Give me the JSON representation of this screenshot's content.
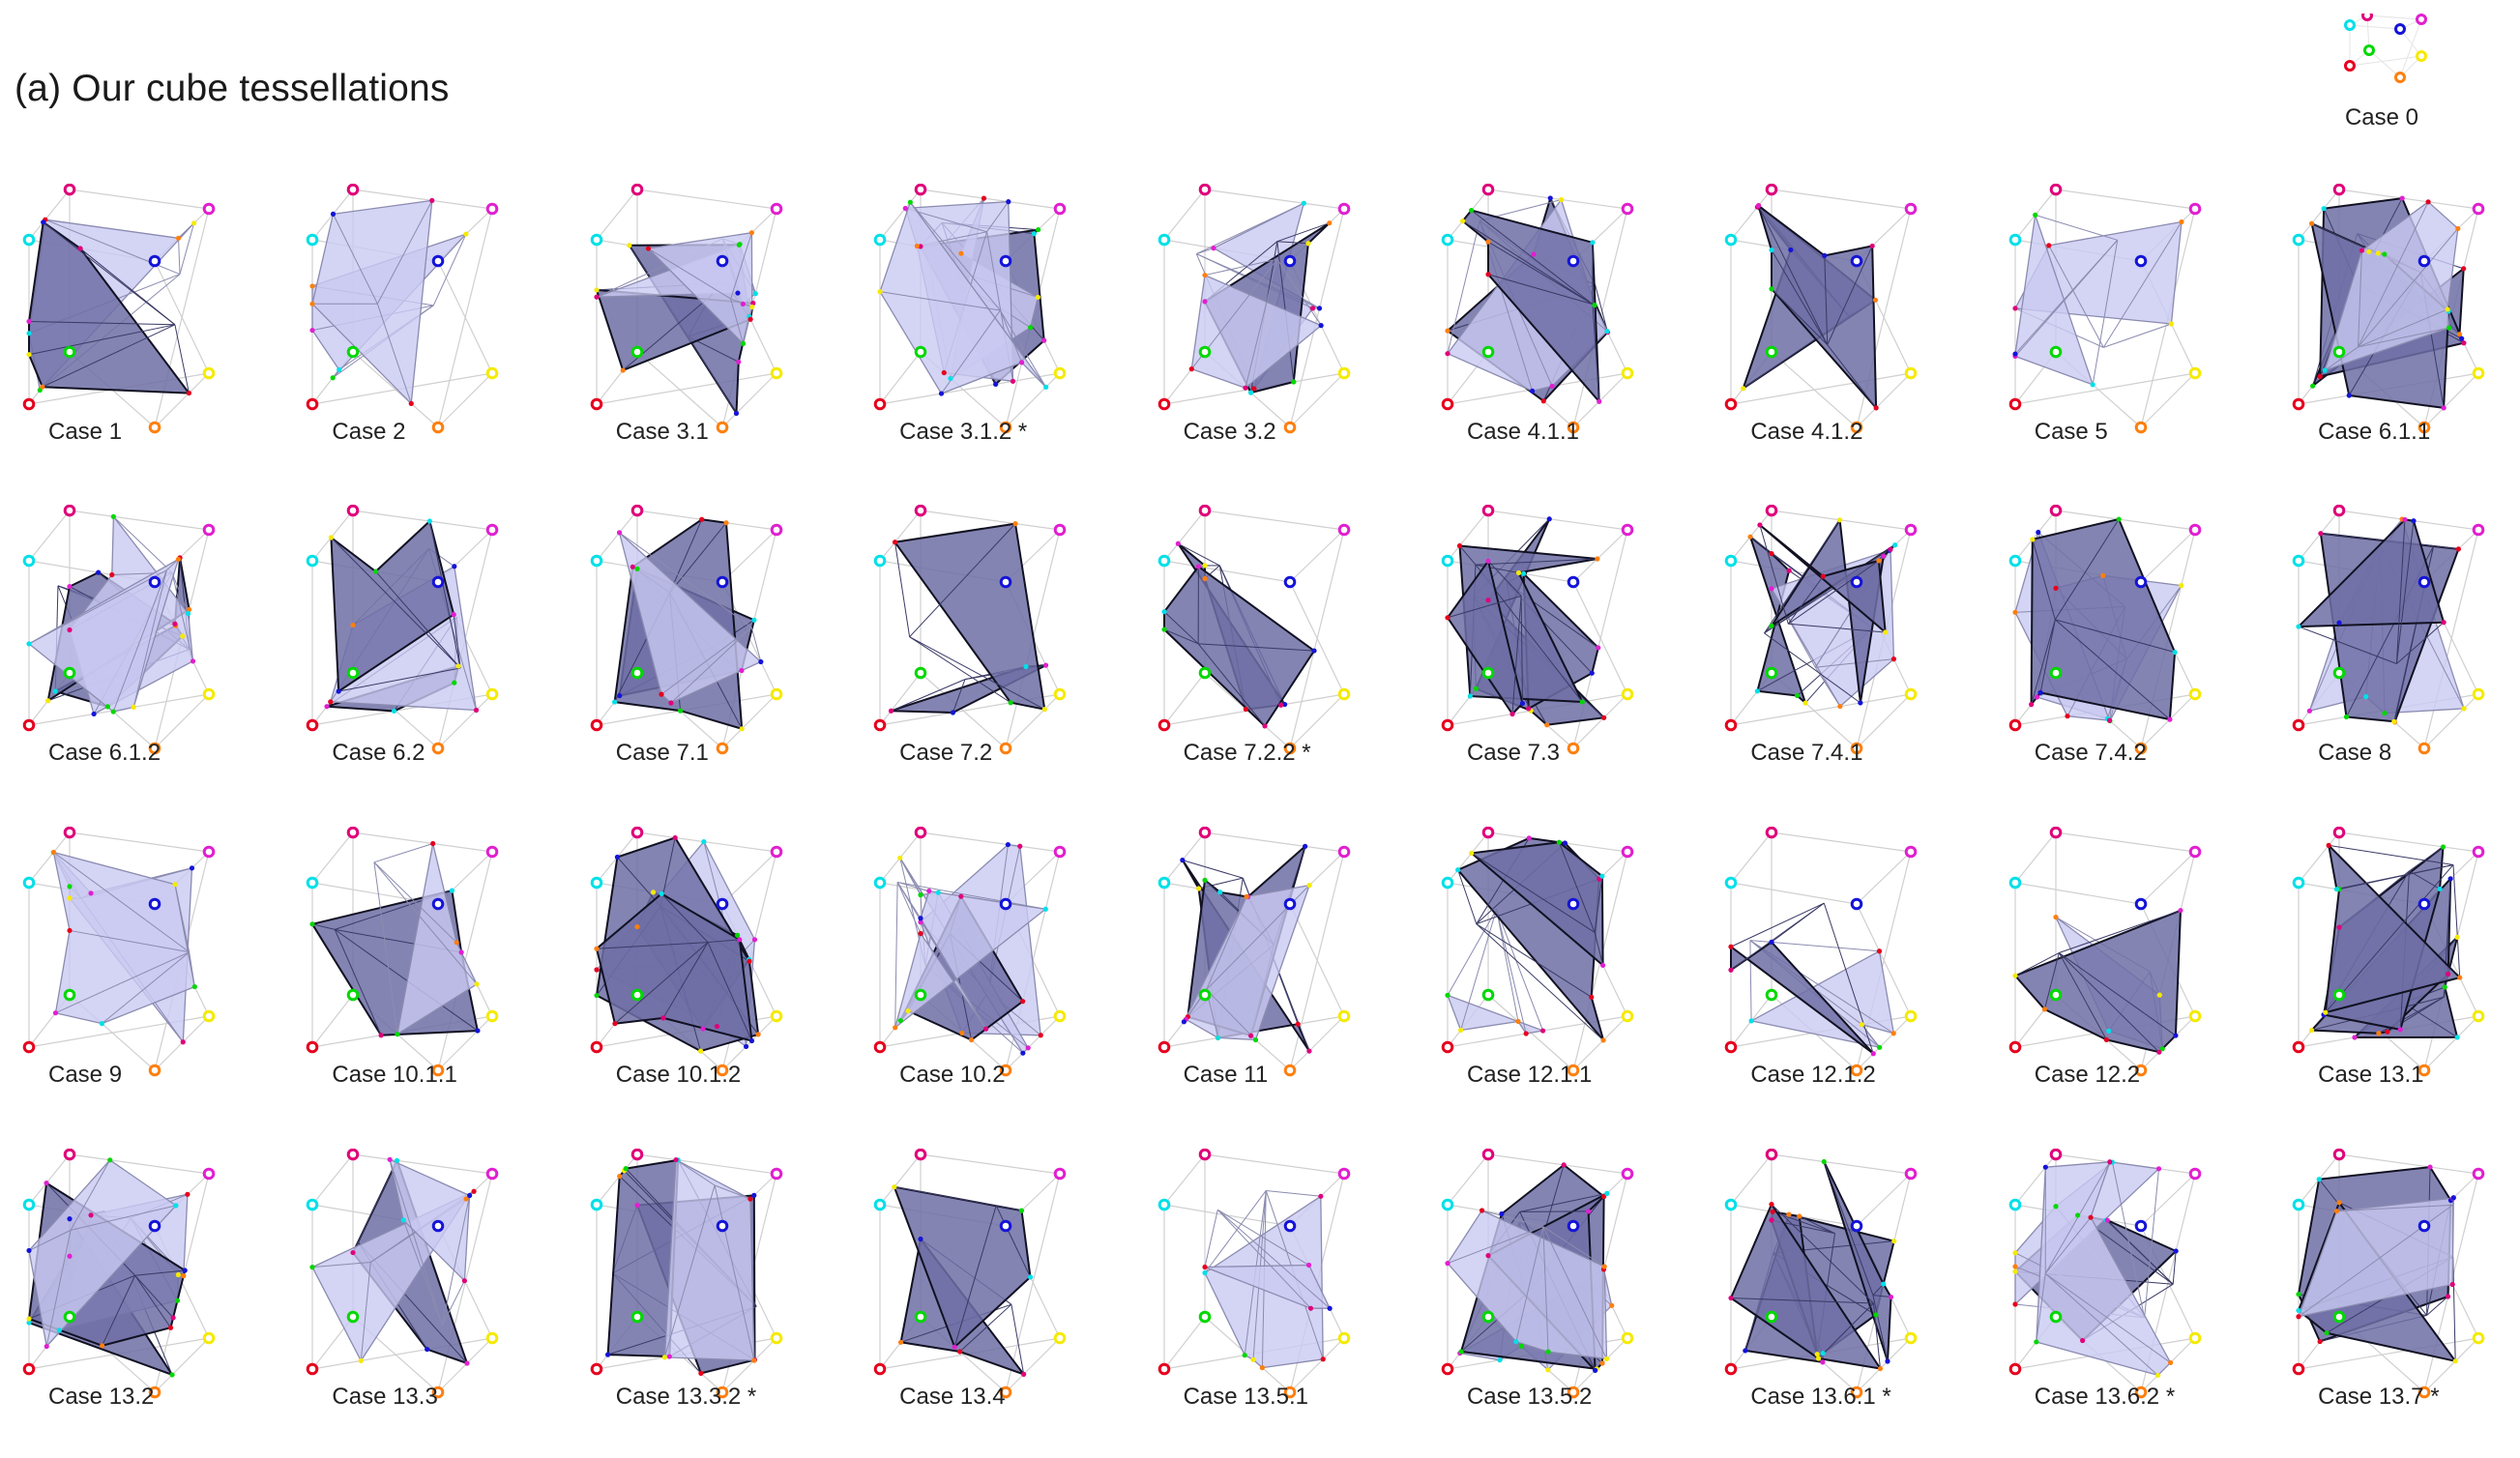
{
  "title": "(a) Our cube tessellations",
  "legend": {
    "label": "Case 0"
  },
  "vertex_colors": [
    "#e6001e",
    "#ff7f0e",
    "#f5ea00",
    "#00d800",
    "#00e0e8",
    "#e11fd0",
    "#1414d8",
    "#e0007a"
  ],
  "surface_colors": {
    "light": "#c9c9f3",
    "dark": "#6e6ea6",
    "edge": "#8b8bb0",
    "outline": "#111122",
    "cube_edge": "#d0d0d0"
  },
  "cases": [
    "Case 1",
    "Case 2",
    "Case 3.1",
    "Case 3.1.2 *",
    "Case 3.2",
    "Case 4.1.1",
    "Case 4.1.2",
    "Case 5",
    "Case 6.1.1",
    "Case 6.1.2",
    "Case 6.2",
    "Case 7.1",
    "Case 7.2",
    "Case 7.2.2 *",
    "Case 7.3",
    "Case 7.4.1",
    "Case 7.4.2",
    "Case 8",
    "Case 9",
    "Case 10.1.1",
    "Case 10.1.2",
    "Case 10.2",
    "Case 11",
    "Case 12.1.1",
    "Case 12.1.2",
    "Case 12.2",
    "Case 13.1",
    "Case 13.2",
    "Case 13.3",
    "Case 13.3.2 *",
    "Case 13.4",
    "Case 13.5.1",
    "Case 13.5.2",
    "Case 13.6.1 *",
    "Case 13.6.2 *",
    "Case 13.7 *"
  ]
}
